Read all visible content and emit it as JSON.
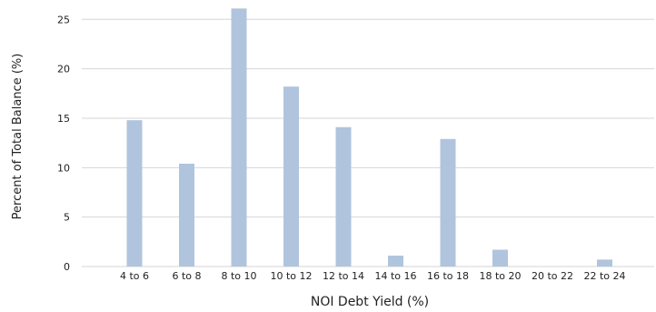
{
  "chart_data": {
    "type": "bar",
    "xlabel": "NOI Debt Yield (%)",
    "ylabel": "Percent of Total Balance (%)",
    "categories": [
      "4 to 6",
      "6 to 8",
      "8 to 10",
      "10 to 12",
      "12 to 14",
      "14 to 16",
      "16 to 18",
      "18 to 20",
      "20 to 22",
      "22 to 24"
    ],
    "values": [
      14.8,
      10.4,
      26.1,
      18.2,
      14.1,
      1.1,
      12.9,
      1.7,
      0.0,
      0.7
    ],
    "ylim": [
      0,
      26.5
    ],
    "yticks": [
      0,
      5,
      10,
      15,
      20,
      25
    ],
    "grid": true,
    "legend": "none",
    "colors": {
      "bar": "#b0c4de",
      "grid": "#d6d6d6",
      "text": "#222222"
    }
  }
}
